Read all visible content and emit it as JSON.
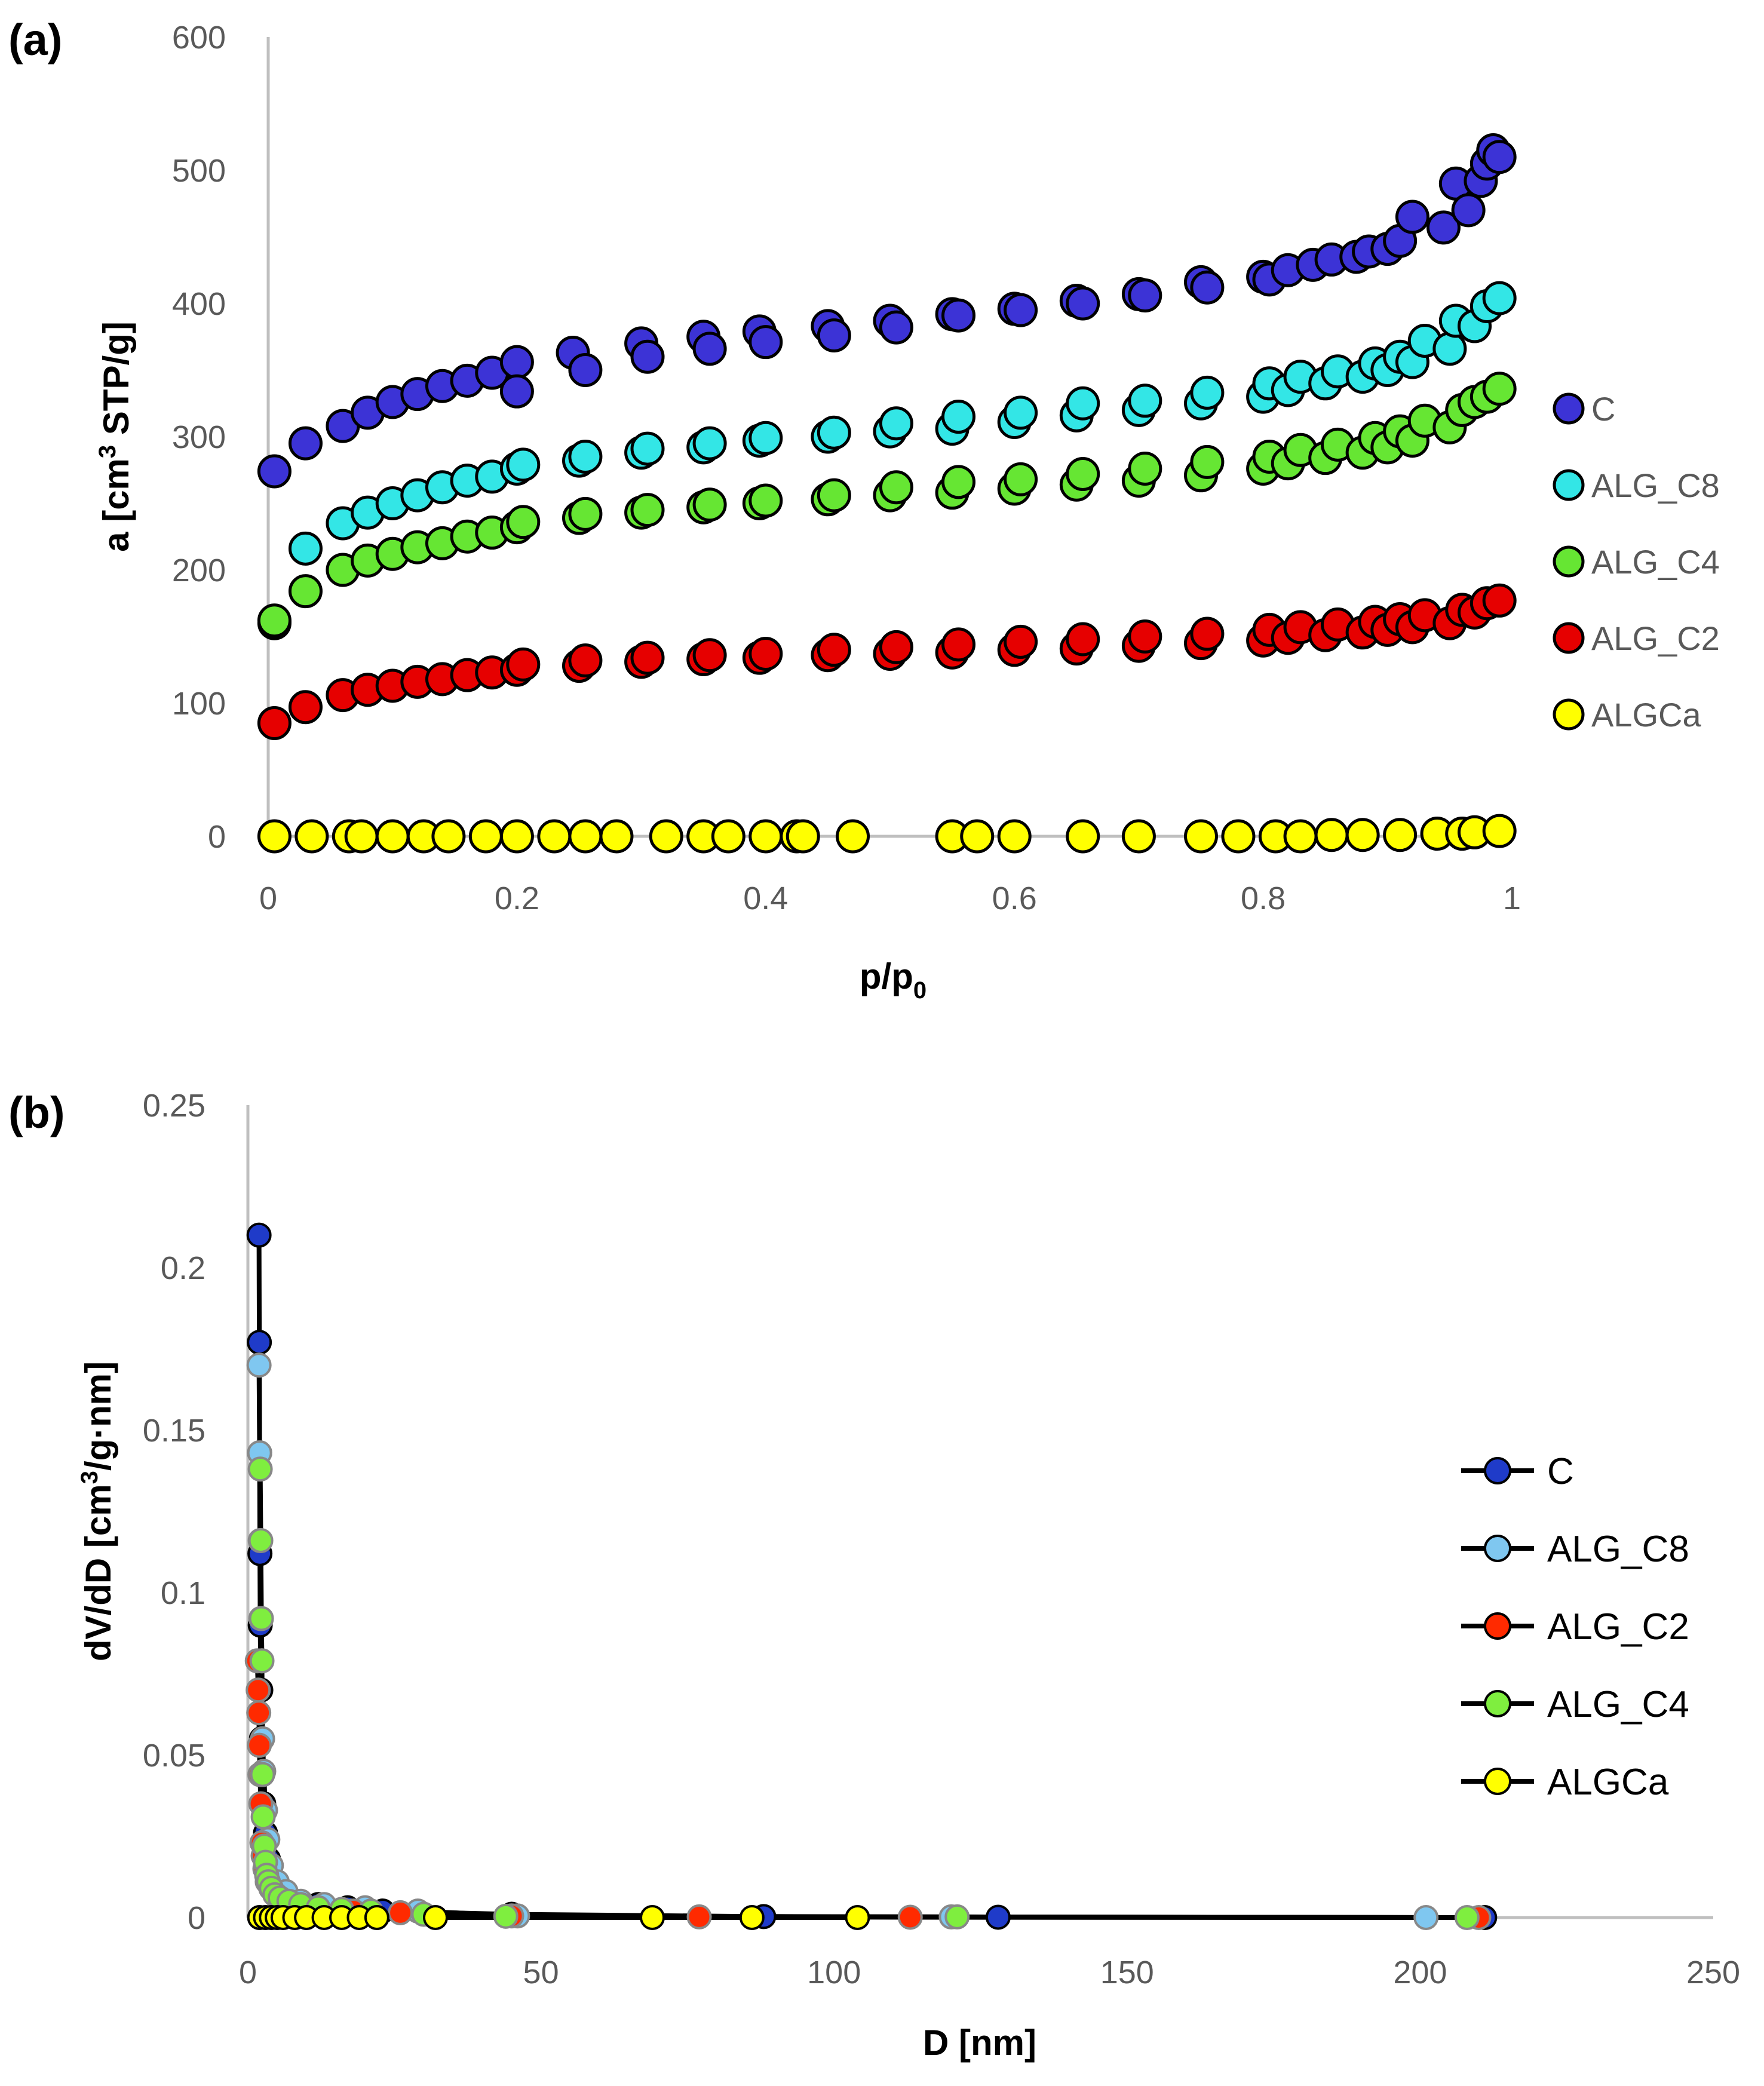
{
  "chart_data": [
    {
      "panel": "(a)",
      "type": "scatter",
      "xlabel": "p/p",
      "xlabel_sub": "0",
      "ylabel": "a [cm",
      "ylabel_sup": "3",
      "ylabel_rest": " STP/g]",
      "xlim": [
        0,
        1
      ],
      "ylim": [
        0,
        600
      ],
      "xticks": [
        "0",
        "0.2",
        "0.4",
        "0.6",
        "0.8",
        "1"
      ],
      "yticks": [
        "0",
        "100",
        "200",
        "300",
        "400",
        "500",
        "600"
      ],
      "legend_position": "right",
      "series": [
        {
          "name": "C",
          "color": "#3c33d6",
          "x": [
            0.005,
            0.03,
            0.06,
            0.08,
            0.1,
            0.12,
            0.14,
            0.16,
            0.18,
            0.2,
            0.2,
            0.245,
            0.255,
            0.3,
            0.305,
            0.35,
            0.355,
            0.395,
            0.4,
            0.45,
            0.455,
            0.5,
            0.505,
            0.55,
            0.555,
            0.6,
            0.605,
            0.65,
            0.655,
            0.7,
            0.705,
            0.75,
            0.755,
            0.8,
            0.805,
            0.82,
            0.84,
            0.855,
            0.875,
            0.885,
            0.9,
            0.91,
            0.92,
            0.945,
            0.955,
            0.965,
            0.975,
            0.98,
            0.985,
            0.99
          ],
          "y": [
            274,
            295,
            308,
            318,
            326,
            332,
            338,
            342,
            348,
            356,
            334,
            363,
            350,
            370,
            360,
            375,
            366,
            379,
            371,
            383,
            376,
            387,
            382,
            392,
            391,
            396,
            395,
            402,
            400,
            407,
            406,
            416,
            412,
            420,
            418,
            425,
            429,
            433,
            435,
            439,
            441,
            447,
            465,
            457,
            490,
            470,
            492,
            505,
            515,
            510
          ]
        },
        {
          "name": "ALG_C8",
          "color": "#33e6e6",
          "x": [
            0.005,
            0.03,
            0.06,
            0.08,
            0.1,
            0.12,
            0.14,
            0.16,
            0.18,
            0.2,
            0.205,
            0.25,
            0.255,
            0.3,
            0.305,
            0.35,
            0.355,
            0.395,
            0.4,
            0.45,
            0.455,
            0.5,
            0.505,
            0.55,
            0.555,
            0.6,
            0.605,
            0.65,
            0.655,
            0.7,
            0.705,
            0.75,
            0.755,
            0.8,
            0.805,
            0.82,
            0.83,
            0.85,
            0.86,
            0.88,
            0.89,
            0.9,
            0.91,
            0.92,
            0.93,
            0.95,
            0.955,
            0.97,
            0.98,
            0.99
          ],
          "y": [
            160,
            216,
            235,
            243,
            250,
            256,
            262,
            267,
            270,
            276,
            279,
            282,
            285,
            288,
            291,
            292,
            295,
            297,
            299,
            300,
            303,
            304,
            310,
            306,
            315,
            311,
            318,
            316,
            325,
            320,
            327,
            325,
            333,
            330,
            340,
            335,
            345,
            340,
            349,
            345,
            355,
            350,
            360,
            356,
            372,
            366,
            387,
            383,
            398,
            404
          ]
        },
        {
          "name": "ALG_C4",
          "color": "#66e633",
          "x": [
            0.005,
            0.03,
            0.06,
            0.08,
            0.1,
            0.12,
            0.14,
            0.16,
            0.18,
            0.2,
            0.205,
            0.25,
            0.255,
            0.3,
            0.305,
            0.35,
            0.355,
            0.395,
            0.4,
            0.45,
            0.455,
            0.5,
            0.505,
            0.55,
            0.555,
            0.6,
            0.605,
            0.65,
            0.655,
            0.7,
            0.705,
            0.75,
            0.755,
            0.8,
            0.805,
            0.82,
            0.83,
            0.85,
            0.86,
            0.88,
            0.89,
            0.9,
            0.91,
            0.92,
            0.93,
            0.95,
            0.96,
            0.97,
            0.98,
            0.99
          ],
          "y": [
            162,
            184,
            200,
            207,
            212,
            217,
            220,
            225,
            228,
            232,
            236,
            239,
            242,
            243,
            245,
            247,
            249,
            250,
            252,
            253,
            256,
            256,
            262,
            258,
            266,
            261,
            268,
            264,
            272,
            267,
            276,
            271,
            281,
            276,
            285,
            280,
            290,
            284,
            294,
            288,
            299,
            292,
            304,
            297,
            312,
            307,
            320,
            326,
            330,
            336
          ]
        },
        {
          "name": "ALG_C2",
          "color": "#e60000",
          "x": [
            0.005,
            0.03,
            0.06,
            0.08,
            0.1,
            0.12,
            0.14,
            0.16,
            0.18,
            0.2,
            0.205,
            0.25,
            0.255,
            0.3,
            0.305,
            0.35,
            0.355,
            0.395,
            0.4,
            0.45,
            0.455,
            0.5,
            0.505,
            0.55,
            0.555,
            0.6,
            0.605,
            0.65,
            0.655,
            0.7,
            0.705,
            0.75,
            0.755,
            0.8,
            0.805,
            0.82,
            0.83,
            0.85,
            0.86,
            0.88,
            0.89,
            0.9,
            0.91,
            0.92,
            0.93,
            0.95,
            0.96,
            0.97,
            0.98,
            0.99
          ],
          "y": [
            85,
            97,
            106,
            110,
            113,
            116,
            118,
            121,
            123,
            125,
            129,
            128,
            132,
            131,
            134,
            133,
            136,
            134,
            137,
            136,
            140,
            137,
            142,
            138,
            144,
            140,
            146,
            141,
            148,
            143,
            150,
            145,
            152,
            147,
            155,
            149,
            157,
            151,
            159,
            153,
            161,
            155,
            163,
            157,
            166,
            160,
            170,
            168,
            175,
            177
          ]
        },
        {
          "name": "ALGCa",
          "color": "#ffff00",
          "x": [
            0.005,
            0.035,
            0.065,
            0.075,
            0.1,
            0.125,
            0.145,
            0.175,
            0.2,
            0.23,
            0.255,
            0.28,
            0.32,
            0.35,
            0.37,
            0.4,
            0.425,
            0.43,
            0.47,
            0.55,
            0.57,
            0.6,
            0.655,
            0.7,
            0.75,
            0.78,
            0.81,
            0.83,
            0.855,
            0.88,
            0.91,
            0.94,
            0.96,
            0.97,
            0.99
          ],
          "y": [
            0,
            0,
            0,
            0,
            0,
            0,
            0,
            0,
            0,
            0,
            0,
            0,
            0,
            0,
            0,
            0,
            0,
            0,
            0,
            0,
            0,
            0,
            0,
            0,
            0,
            0,
            0,
            0,
            1,
            1,
            1,
            2,
            2,
            3,
            4
          ]
        }
      ]
    },
    {
      "panel": "(b)",
      "type": "line",
      "xlabel": "D [nm]",
      "ylabel": "dV/dD [cm",
      "ylabel_sup": "3",
      "ylabel_rest": "/g·nm]",
      "xlim": [
        0,
        250
      ],
      "ylim": [
        0,
        0.25
      ],
      "xticks": [
        "0",
        "50",
        "100",
        "150",
        "200",
        "250"
      ],
      "yticks": [
        "0",
        "0.05",
        "0.1",
        "0.15",
        "0.2",
        "0.25"
      ],
      "legend_position": "right",
      "series": [
        {
          "name": "C",
          "color": "#1f3bc9",
          "x": [
            1.9,
            1.95,
            2.0,
            2.05,
            2.1,
            2.2,
            2.3,
            2.5,
            2.7,
            3.0,
            3.5,
            4.2,
            5.5,
            8.0,
            12,
            17,
            23,
            45,
            88,
            128,
            211
          ],
          "y": [
            0.21,
            0.177,
            0.143,
            0.112,
            0.09,
            0.07,
            0.055,
            0.044,
            0.035,
            0.026,
            0.018,
            0.012,
            0.008,
            0.005,
            0.004,
            0.003,
            0.002,
            0.001,
            0.0003,
            0.0001,
            0.0
          ]
        },
        {
          "name": "ALG_C8",
          "color": "#7fc7f0",
          "x": [
            1.9,
            2.0,
            2.1,
            2.2,
            2.35,
            2.5,
            2.7,
            3.0,
            3.4,
            4.0,
            5.0,
            6.5,
            9,
            13,
            20,
            29,
            46,
            120,
            201
          ],
          "y": [
            0.17,
            0.143,
            0.116,
            0.092,
            0.079,
            0.055,
            0.045,
            0.033,
            0.024,
            0.016,
            0.011,
            0.008,
            0.005,
            0.004,
            0.003,
            0.002,
            0.0005,
            0.0002,
            0.0
          ]
        },
        {
          "name": "ALG_C2",
          "color": "#ff2a00",
          "x": [
            1.6,
            1.75,
            1.85,
            1.95,
            2.05,
            2.2,
            2.4,
            2.6,
            2.9,
            3.3,
            3.9,
            4.8,
            6.2,
            8.5,
            12,
            18,
            26,
            45,
            77,
            113,
            210
          ],
          "y": [
            0.079,
            0.07,
            0.063,
            0.053,
            0.044,
            0.035,
            0.023,
            0.019,
            0.015,
            0.011,
            0.009,
            0.007,
            0.005,
            0.004,
            0.003,
            0.002,
            0.0015,
            0.0005,
            0.0002,
            0.0001,
            0.0
          ]
        },
        {
          "name": "ALG_C4",
          "color": "#7fee3f",
          "x": [
            2.1,
            2.2,
            2.3,
            2.4,
            2.5,
            2.6,
            2.8,
            3.0,
            3.2,
            3.5,
            4.0,
            4.6,
            5.5,
            7,
            9,
            12,
            16,
            21,
            30,
            44,
            121,
            208
          ],
          "y": [
            0.138,
            0.116,
            0.092,
            0.079,
            0.044,
            0.031,
            0.022,
            0.017,
            0.013,
            0.011,
            0.009,
            0.007,
            0.006,
            0.005,
            0.004,
            0.003,
            0.0025,
            0.002,
            0.001,
            0.0004,
            0.0002,
            0.0
          ]
        },
        {
          "name": "ALGCa",
          "color": "#ffff00",
          "x": [
            2.0,
            3.0,
            4.0,
            5.0,
            6.0,
            8,
            10,
            13,
            16,
            19,
            22,
            32,
            69,
            86,
            104
          ],
          "y": [
            0,
            0,
            0,
            0,
            0,
            0,
            0,
            0,
            0,
            0,
            0,
            0,
            0,
            0,
            0
          ]
        }
      ]
    }
  ]
}
